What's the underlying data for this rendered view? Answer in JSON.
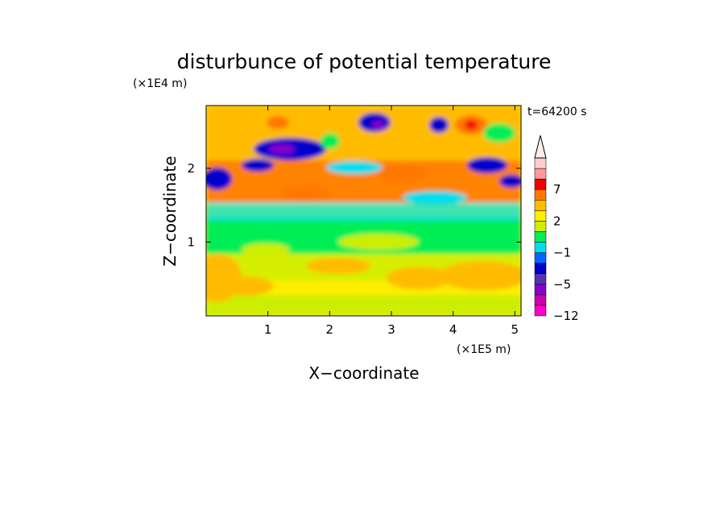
{
  "chart_data": {
    "type": "heatmap",
    "title": "disturbunce of potential temperature",
    "xlabel": "X−coordinate",
    "ylabel": "Z−coordinate",
    "x_unit": "(×1E5 m)",
    "y_unit": "(×1E4 m)",
    "time_label": "t=64200 s",
    "xlim": [
      0,
      5.1
    ],
    "ylim": [
      0,
      2.85
    ],
    "x_ticks": [
      {
        "value": 1,
        "label": "1"
      },
      {
        "value": 2,
        "label": "2"
      },
      {
        "value": 3,
        "label": "3"
      },
      {
        "value": 4,
        "label": "4"
      },
      {
        "value": 5,
        "label": "5"
      }
    ],
    "y_ticks": [
      {
        "value": 1,
        "label": "1"
      },
      {
        "value": 2,
        "label": "2"
      }
    ],
    "colorbar": {
      "levels": [
        -12,
        -9,
        -7,
        -5,
        -4,
        -3,
        -1,
        0,
        1,
        2,
        3,
        5,
        7,
        9,
        11
      ],
      "colors": [
        "#ff00cc",
        "#cc00aa",
        "#8800cc",
        "#5533aa",
        "#0000cc",
        "#0066ff",
        "#00ddee",
        "#00ee55",
        "#ccee00",
        "#ffee00",
        "#ffbb00",
        "#ff7700",
        "#ee0000",
        "#ff9999",
        "#ffcccc"
      ],
      "tick_labels": [
        {
          "value": -12,
          "label": "−12"
        },
        {
          "value": -5,
          "label": "−5"
        },
        {
          "value": -1,
          "label": "−1"
        },
        {
          "value": 2,
          "label": "2"
        },
        {
          "value": 7,
          "label": "7"
        }
      ],
      "extend_max": true
    }
  }
}
